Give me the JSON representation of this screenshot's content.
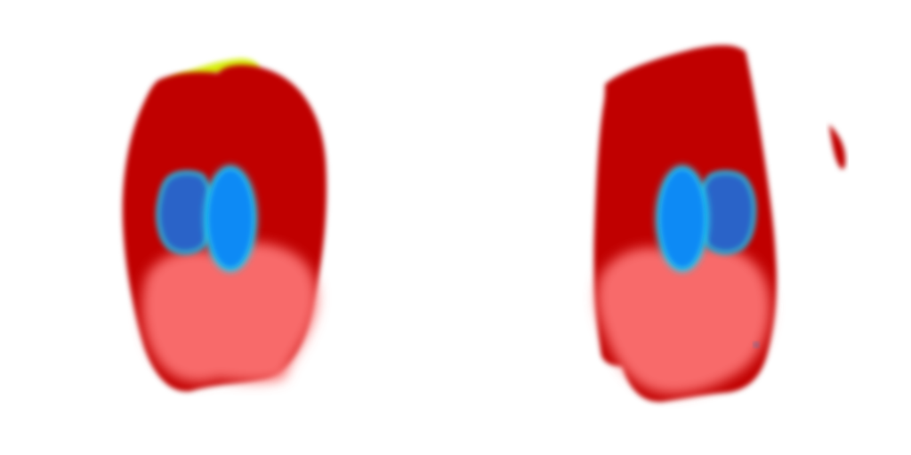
{
  "image": {
    "panel_count": 2,
    "background_color": "#ffffff",
    "colors": {
      "outer_region": "#c00000",
      "lower_region": "#f86a6a",
      "inner_region": "#2a63c8",
      "inner_outline": "#33a6cc",
      "bright_core": "#0a8af5",
      "bright_core_glow": "#28c8ee",
      "edge_highlight": "#d8f010",
      "accent_small": "#6a6a9a"
    },
    "panels": [
      {
        "name": "left-panel",
        "orientation": "normal"
      },
      {
        "name": "right-panel",
        "orientation": "mirrored"
      }
    ]
  }
}
